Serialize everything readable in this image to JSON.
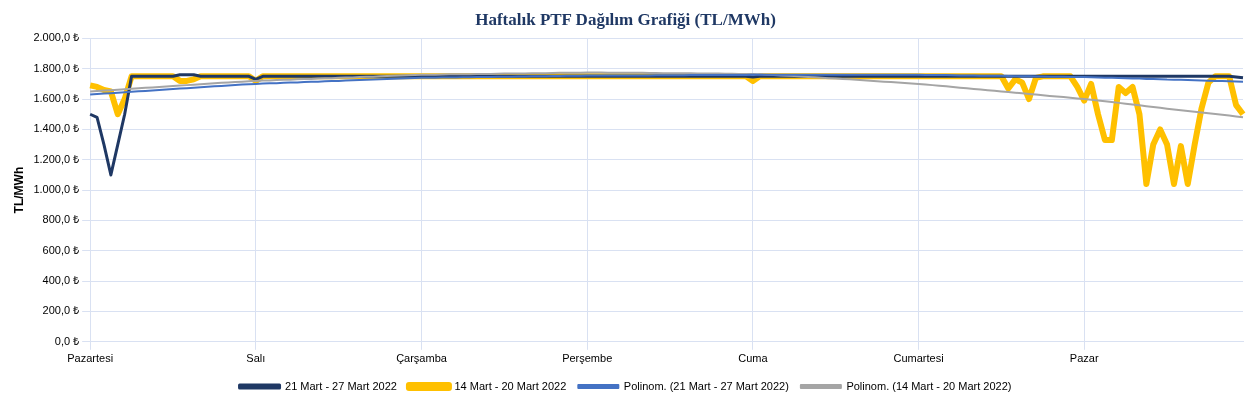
{
  "chart_data": {
    "type": "line",
    "title": "Haftalık PTF Dağılım Grafiği (TL/MWh)",
    "ylabel": "TL/MWh",
    "categories": [
      "Pazartesi",
      null,
      null,
      null,
      null,
      null,
      null,
      null,
      null,
      null,
      null,
      null,
      null,
      null,
      null,
      null,
      null,
      null,
      null,
      null,
      null,
      null,
      null,
      null,
      "Salı",
      null,
      null,
      null,
      null,
      null,
      null,
      null,
      null,
      null,
      null,
      null,
      null,
      null,
      null,
      null,
      null,
      null,
      null,
      null,
      null,
      null,
      null,
      null,
      "Çarşamba",
      null,
      null,
      null,
      null,
      null,
      null,
      null,
      null,
      null,
      null,
      null,
      null,
      null,
      null,
      null,
      null,
      null,
      null,
      null,
      null,
      null,
      null,
      null,
      "Perşembe",
      null,
      null,
      null,
      null,
      null,
      null,
      null,
      null,
      null,
      null,
      null,
      null,
      null,
      null,
      null,
      null,
      null,
      null,
      null,
      null,
      null,
      null,
      null,
      "Cuma",
      null,
      null,
      null,
      null,
      null,
      null,
      null,
      null,
      null,
      null,
      null,
      null,
      null,
      null,
      null,
      null,
      null,
      null,
      null,
      null,
      null,
      null,
      null,
      "Cumartesi",
      null,
      null,
      null,
      null,
      null,
      null,
      null,
      null,
      null,
      null,
      null,
      null,
      null,
      null,
      null,
      null,
      null,
      null,
      null,
      null,
      null,
      null,
      null,
      "Pazar",
      null,
      null,
      null,
      null,
      null,
      null,
      null,
      null,
      null,
      null,
      null,
      null,
      null,
      null,
      null,
      null,
      null,
      null,
      null,
      null,
      null,
      null,
      null
    ],
    "ylim": [
      0,
      2000
    ],
    "yticks": [
      {
        "value": 0,
        "label": "0,0 ₺"
      },
      {
        "value": 200,
        "label": "200,0 ₺"
      },
      {
        "value": 400,
        "label": "400,0 ₺"
      },
      {
        "value": 600,
        "label": "600,0 ₺"
      },
      {
        "value": 800,
        "label": "800,0 ₺"
      },
      {
        "value": 1000,
        "label": "1.000,0 ₺"
      },
      {
        "value": 1200,
        "label": "1.200,0 ₺"
      },
      {
        "value": 1400,
        "label": "1.400,0 ₺"
      },
      {
        "value": 1600,
        "label": "1.600,0 ₺"
      },
      {
        "value": 1800,
        "label": "1.800,0 ₺"
      },
      {
        "value": 2000,
        "label": "2.000,0 ₺"
      }
    ],
    "grid": true,
    "legend": "bottom",
    "marker": "none",
    "series": [
      {
        "name": "21 Mart - 27 Mart 2022",
        "color": "#1f3864",
        "values": [
          1500,
          1480,
          1300,
          1100,
          1300,
          1500,
          1750,
          1750,
          1750,
          1750,
          1750,
          1750,
          1750,
          1760,
          1760,
          1760,
          1750,
          1750,
          1750,
          1750,
          1750,
          1750,
          1750,
          1750,
          1730,
          1750,
          1750,
          1750,
          1750,
          1750,
          1750,
          1750,
          1750,
          1750,
          1750,
          1750,
          1750,
          1750,
          1750,
          1750,
          1750,
          1750,
          1750,
          1750,
          1750,
          1750,
          1750,
          1750,
          1750,
          1750,
          1750,
          1750,
          1750,
          1750,
          1750,
          1750,
          1750,
          1750,
          1750,
          1750,
          1750,
          1750,
          1750,
          1750,
          1750,
          1750,
          1750,
          1750,
          1750,
          1750,
          1750,
          1750,
          1750,
          1750,
          1750,
          1750,
          1750,
          1750,
          1750,
          1750,
          1750,
          1750,
          1750,
          1750,
          1750,
          1750,
          1750,
          1750,
          1750,
          1750,
          1750,
          1750,
          1750,
          1750,
          1750,
          1750,
          1745,
          1750,
          1750,
          1750,
          1750,
          1750,
          1750,
          1750,
          1750,
          1750,
          1750,
          1750,
          1750,
          1750,
          1750,
          1750,
          1750,
          1750,
          1750,
          1750,
          1750,
          1750,
          1750,
          1750,
          1750,
          1750,
          1750,
          1750,
          1750,
          1750,
          1750,
          1750,
          1750,
          1750,
          1750,
          1750,
          1750,
          1750,
          1750,
          1750,
          1750,
          1750,
          1750,
          1750,
          1750,
          1750,
          1750,
          1750,
          1750,
          1750,
          1750,
          1750,
          1750,
          1750,
          1750,
          1750,
          1750,
          1750,
          1750,
          1750,
          1750,
          1750,
          1750,
          1750,
          1750,
          1750,
          1750,
          1750,
          1750,
          1750,
          1745,
          1740
        ]
      },
      {
        "name": "14 Mart - 20 Mart 2022",
        "color": "#ffc000",
        "values": [
          1690,
          1680,
          1660,
          1650,
          1500,
          1600,
          1750,
          1750,
          1750,
          1750,
          1750,
          1750,
          1750,
          1720,
          1720,
          1730,
          1750,
          1750,
          1750,
          1750,
          1750,
          1750,
          1750,
          1750,
          1720,
          1750,
          1750,
          1750,
          1750,
          1750,
          1750,
          1750,
          1750,
          1750,
          1750,
          1750,
          1750,
          1750,
          1750,
          1750,
          1750,
          1750,
          1750,
          1750,
          1750,
          1750,
          1750,
          1750,
          1750,
          1750,
          1750,
          1750,
          1750,
          1750,
          1750,
          1750,
          1750,
          1750,
          1750,
          1750,
          1750,
          1750,
          1750,
          1750,
          1750,
          1750,
          1750,
          1750,
          1750,
          1750,
          1750,
          1750,
          1750,
          1750,
          1750,
          1750,
          1750,
          1750,
          1750,
          1750,
          1750,
          1750,
          1750,
          1750,
          1750,
          1750,
          1750,
          1750,
          1750,
          1750,
          1750,
          1750,
          1750,
          1750,
          1750,
          1750,
          1720,
          1750,
          1750,
          1750,
          1750,
          1750,
          1750,
          1750,
          1750,
          1750,
          1750,
          1750,
          1750,
          1750,
          1750,
          1750,
          1750,
          1750,
          1750,
          1750,
          1750,
          1750,
          1750,
          1750,
          1750,
          1750,
          1750,
          1750,
          1750,
          1750,
          1750,
          1750,
          1750,
          1750,
          1750,
          1750,
          1750,
          1670,
          1730,
          1710,
          1600,
          1740,
          1750,
          1750,
          1750,
          1750,
          1750,
          1680,
          1590,
          1700,
          1500,
          1330,
          1330,
          1680,
          1640,
          1680,
          1500,
          1040,
          1300,
          1400,
          1300,
          1040,
          1290,
          1040,
          1300,
          1540,
          1710,
          1750,
          1750,
          1750,
          1560,
          1500
        ]
      },
      {
        "name": "Polinom. (21 Mart - 27 Mart 2022)",
        "color": "#4472c4",
        "values": [
          1630,
          1633,
          1636,
          1639,
          1642,
          1645,
          1648,
          1651,
          1654,
          1657,
          1660,
          1663,
          1666,
          1669,
          1672,
          1675,
          1678,
          1681,
          1684,
          1687,
          1690,
          1693,
          1696,
          1698,
          1700,
          1702,
          1704,
          1705,
          1707,
          1709,
          1710,
          1712,
          1714,
          1715,
          1717,
          1719,
          1720,
          1722,
          1724,
          1725,
          1727,
          1729,
          1730,
          1732,
          1734,
          1735,
          1737,
          1739,
          1740,
          1741,
          1741,
          1742,
          1742,
          1743,
          1744,
          1744,
          1745,
          1746,
          1746,
          1747,
          1747,
          1748,
          1749,
          1749,
          1750,
          1751,
          1751,
          1752,
          1752,
          1753,
          1754,
          1754,
          1755,
          1755,
          1755,
          1755,
          1755,
          1756,
          1756,
          1756,
          1756,
          1756,
          1757,
          1757,
          1757,
          1757,
          1757,
          1758,
          1758,
          1758,
          1758,
          1758,
          1759,
          1759,
          1759,
          1759,
          1760,
          1760,
          1760,
          1760,
          1760,
          1760,
          1760,
          1760,
          1760,
          1760,
          1760,
          1760,
          1760,
          1760,
          1760,
          1760,
          1760,
          1760,
          1760,
          1760,
          1760,
          1760,
          1760,
          1760,
          1760,
          1759,
          1759,
          1758,
          1758,
          1757,
          1756,
          1756,
          1755,
          1754,
          1754,
          1753,
          1753,
          1752,
          1751,
          1751,
          1750,
          1749,
          1749,
          1748,
          1748,
          1747,
          1746,
          1746,
          1745,
          1744,
          1743,
          1741,
          1740,
          1739,
          1737,
          1736,
          1735,
          1733,
          1732,
          1731,
          1729,
          1728,
          1727,
          1725,
          1724,
          1723,
          1721,
          1720,
          1719,
          1717,
          1716,
          1715
        ]
      },
      {
        "name": "Polinom. (14 Mart - 20 Mart 2022)",
        "color": "#a5a5a5",
        "values": [
          1650,
          1653,
          1656,
          1659,
          1662,
          1665,
          1668,
          1671,
          1674,
          1677,
          1680,
          1683,
          1686,
          1689,
          1692,
          1695,
          1698,
          1701,
          1704,
          1707,
          1709,
          1712,
          1715,
          1718,
          1720,
          1722,
          1723,
          1725,
          1727,
          1728,
          1730,
          1732,
          1733,
          1735,
          1737,
          1738,
          1740,
          1742,
          1743,
          1745,
          1747,
          1748,
          1750,
          1752,
          1753,
          1755,
          1757,
          1758,
          1760,
          1761,
          1761,
          1762,
          1763,
          1763,
          1764,
          1764,
          1765,
          1766,
          1766,
          1767,
          1768,
          1768,
          1769,
          1769,
          1770,
          1771,
          1771,
          1772,
          1773,
          1773,
          1774,
          1774,
          1775,
          1775,
          1775,
          1774,
          1774,
          1774,
          1773,
          1773,
          1773,
          1772,
          1772,
          1771,
          1771,
          1771,
          1770,
          1770,
          1769,
          1769,
          1768,
          1768,
          1767,
          1767,
          1766,
          1766,
          1765,
          1763,
          1761,
          1758,
          1756,
          1754,
          1752,
          1749,
          1746,
          1744,
          1741,
          1738,
          1735,
          1733,
          1730,
          1727,
          1724,
          1721,
          1718,
          1715,
          1712,
          1709,
          1706,
          1703,
          1700,
          1696,
          1692,
          1688,
          1684,
          1680,
          1675,
          1671,
          1667,
          1663,
          1659,
          1655,
          1650,
          1646,
          1642,
          1638,
          1634,
          1630,
          1625,
          1621,
          1617,
          1613,
          1609,
          1604,
          1600,
          1595,
          1590,
          1585,
          1580,
          1575,
          1569,
          1564,
          1559,
          1553,
          1548,
          1543,
          1537,
          1532,
          1527,
          1522,
          1516,
          1511,
          1506,
          1501,
          1496,
          1491,
          1485,
          1480
        ]
      }
    ]
  }
}
